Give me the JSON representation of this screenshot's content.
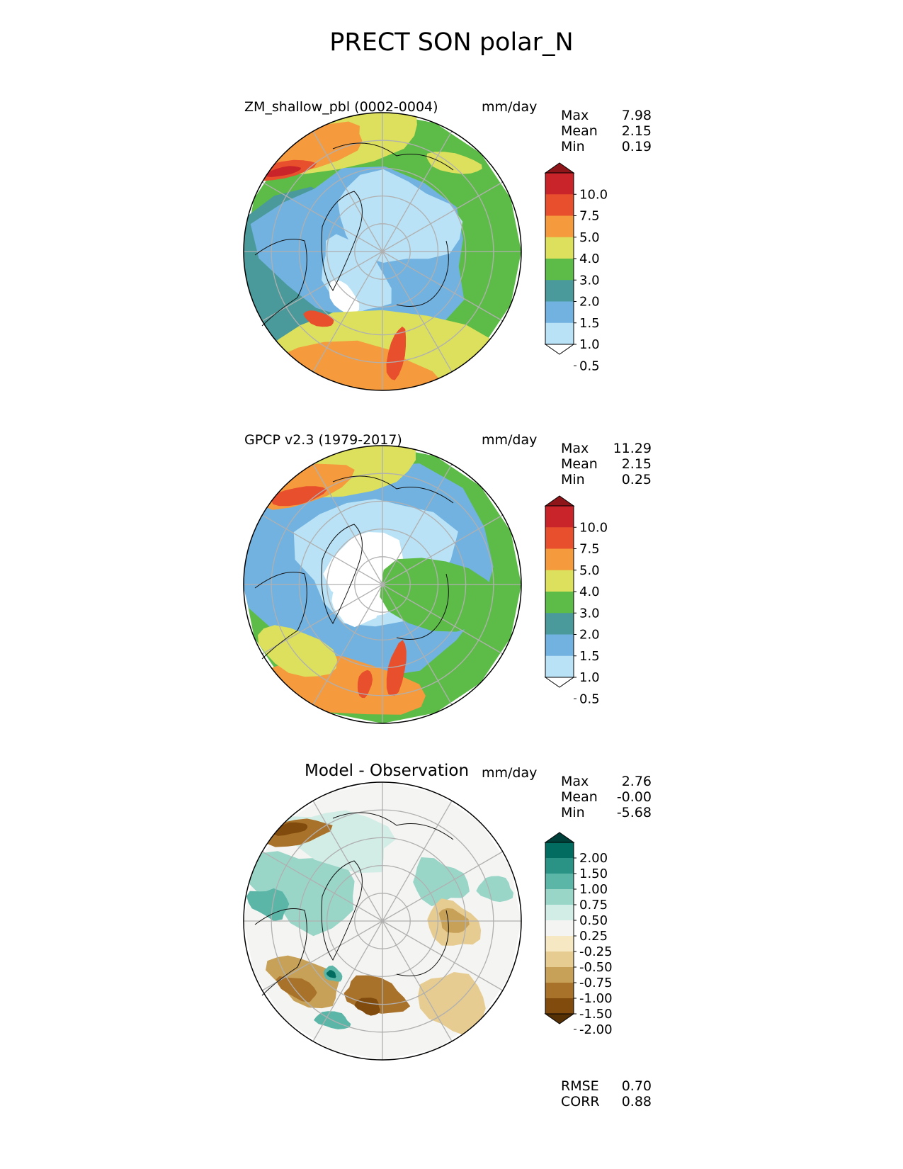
{
  "title": "PRECT SON polar_N",
  "panels": [
    {
      "title": "ZM_shallow_pbl (0002-0004)",
      "units": "mm/day",
      "stats": [
        {
          "label": "Max",
          "value": "7.98"
        },
        {
          "label": "Mean",
          "value": "2.15"
        },
        {
          "label": "Min",
          "value": "0.19"
        }
      ],
      "colorbar": {
        "levels": [
          "10.0",
          "7.5",
          "5.0",
          "4.0",
          "3.0",
          "2.0",
          "1.5",
          "1.0",
          "0.5"
        ],
        "colors": [
          "#8e1519",
          "#c9242a",
          "#e74f2d",
          "#f59a3d",
          "#dce05c",
          "#5dbb47",
          "#4a9a9b",
          "#72b2e0",
          "#b9e2f6",
          "#ffffff"
        ]
      }
    },
    {
      "title": "GPCP v2.3 (1979-2017)",
      "units": "mm/day",
      "stats": [
        {
          "label": "Max",
          "value": "11.29"
        },
        {
          "label": "Mean",
          "value": "2.15"
        },
        {
          "label": "Min",
          "value": "0.25"
        }
      ],
      "colorbar": {
        "levels": [
          "10.0",
          "7.5",
          "5.0",
          "4.0",
          "3.0",
          "2.0",
          "1.5",
          "1.0",
          "0.5"
        ],
        "colors": [
          "#8e1519",
          "#c9242a",
          "#e74f2d",
          "#f59a3d",
          "#dce05c",
          "#5dbb47",
          "#4a9a9b",
          "#72b2e0",
          "#b9e2f6",
          "#ffffff"
        ]
      }
    },
    {
      "title": "Model - Observation",
      "units": "mm/day",
      "stats": [
        {
          "label": "Max",
          "value": "2.76"
        },
        {
          "label": "Mean",
          "value": "-0.00"
        },
        {
          "label": "Min",
          "value": "-5.68"
        }
      ],
      "colorbar": {
        "levels": [
          "2.00",
          "1.50",
          "1.00",
          "0.75",
          "0.50",
          "0.25",
          "-0.25",
          "-0.50",
          "-0.75",
          "-1.00",
          "-1.50",
          "-2.00"
        ],
        "colors": [
          "#00403a",
          "#016c5f",
          "#2a9386",
          "#5bb6a8",
          "#9ad6c8",
          "#d2ece6",
          "#f4f4f2",
          "#f6e8c3",
          "#e6cc91",
          "#c8a158",
          "#a9722a",
          "#804b0d",
          "#563005"
        ]
      }
    }
  ],
  "metrics": [
    {
      "label": "RMSE",
      "value": "0.70"
    },
    {
      "label": "CORR",
      "value": "0.88"
    }
  ],
  "chart_data": {
    "type": "polar stereographic map",
    "region": "polar_N",
    "season": "SON",
    "variable": "PRECT"
  }
}
